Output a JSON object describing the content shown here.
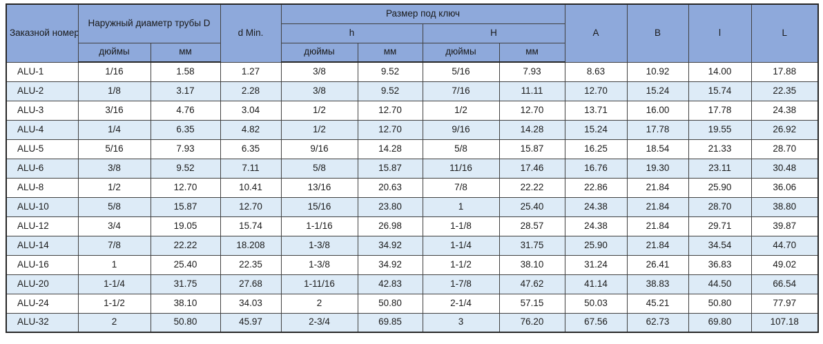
{
  "table": {
    "header": {
      "order_number": "Заказной номер",
      "outer_diameter": "Наружный диаметр трубы D",
      "d_min": "d Min.",
      "wrench_size": "Размер под ключ",
      "h_lower": "h",
      "h_upper": "H",
      "inches": "дюймы",
      "mm": "мм",
      "col_a": "A",
      "col_b": "B",
      "col_l_lower": "l",
      "col_l_upper": "L"
    },
    "rows": [
      [
        "ALU-1",
        "1/16",
        "1.58",
        "1.27",
        "3/8",
        "9.52",
        "5/16",
        "7.93",
        "8.63",
        "10.92",
        "14.00",
        "17.88"
      ],
      [
        "ALU-2",
        "1/8",
        "3.17",
        "2.28",
        "3/8",
        "9.52",
        "7/16",
        "11.11",
        "12.70",
        "15.24",
        "15.74",
        "22.35"
      ],
      [
        "ALU-3",
        "3/16",
        "4.76",
        "3.04",
        "1/2",
        "12.70",
        "1/2",
        "12.70",
        "13.71",
        "16.00",
        "17.78",
        "24.38"
      ],
      [
        "ALU-4",
        "1/4",
        "6.35",
        "4.82",
        "1/2",
        "12.70",
        "9/16",
        "14.28",
        "15.24",
        "17.78",
        "19.55",
        "26.92"
      ],
      [
        "ALU-5",
        "5/16",
        "7.93",
        "6.35",
        "9/16",
        "14.28",
        "5/8",
        "15.87",
        "16.25",
        "18.54",
        "21.33",
        "28.70"
      ],
      [
        "ALU-6",
        "3/8",
        "9.52",
        "7.11",
        "5/8",
        "15.87",
        "11/16",
        "17.46",
        "16.76",
        "19.30",
        "23.11",
        "30.48"
      ],
      [
        "ALU-8",
        "1/2",
        "12.70",
        "10.41",
        "13/16",
        "20.63",
        "7/8",
        "22.22",
        "22.86",
        "21.84",
        "25.90",
        "36.06"
      ],
      [
        "ALU-10",
        "5/8",
        "15.87",
        "12.70",
        "15/16",
        "23.80",
        "1",
        "25.40",
        "24.38",
        "21.84",
        "28.70",
        "38.80"
      ],
      [
        "ALU-12",
        "3/4",
        "19.05",
        "15.74",
        "1-1/16",
        "26.98",
        "1-1/8",
        "28.57",
        "24.38",
        "21.84",
        "29.71",
        "39.87"
      ],
      [
        "ALU-14",
        "7/8",
        "22.22",
        "18.208",
        "1-3/8",
        "34.92",
        "1-1/4",
        "31.75",
        "25.90",
        "21.84",
        "34.54",
        "44.70"
      ],
      [
        "ALU-16",
        "1",
        "25.40",
        "22.35",
        "1-3/8",
        "34.92",
        "1-1/2",
        "38.10",
        "31.24",
        "26.41",
        "36.83",
        "49.02"
      ],
      [
        "ALU-20",
        "1-1/4",
        "31.75",
        "27.68",
        "1-11/16",
        "42.83",
        "1-7/8",
        "47.62",
        "41.14",
        "38.83",
        "44.50",
        "66.54"
      ],
      [
        "ALU-24",
        "1-1/2",
        "38.10",
        "34.03",
        "2",
        "50.80",
        "2-1/4",
        "57.15",
        "50.03",
        "45.21",
        "50.80",
        "77.97"
      ],
      [
        "ALU-32",
        "2",
        "50.80",
        "45.97",
        "2-3/4",
        "69.85",
        "3",
        "76.20",
        "67.56",
        "62.73",
        "69.80",
        "107.18"
      ]
    ]
  },
  "colors": {
    "header_bg": "#8EA9DB",
    "row_alt_bg": "#DDEBF7",
    "border": "#404040",
    "outer_border": "#262626",
    "text": "#1a1a1a"
  }
}
